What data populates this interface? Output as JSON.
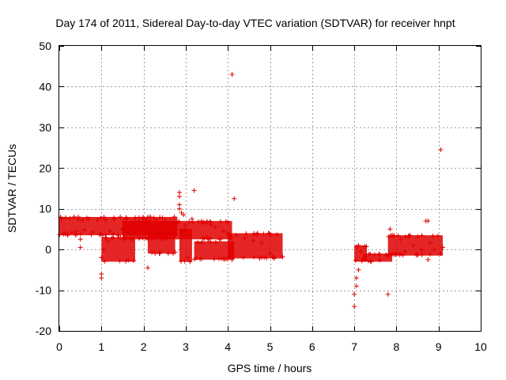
{
  "chart_data": {
    "type": "scatter",
    "title": "Day 174 of 2011, Sidereal Day-to-day VTEC variation (SDTVAR) for receiver hnpt",
    "xlabel": "GPS time / hours",
    "ylabel": "SDTVAR / TECUs",
    "xlim": [
      0,
      10
    ],
    "ylim": [
      -20,
      50
    ],
    "xticks": [
      "0",
      "1",
      "2",
      "3",
      "4",
      "5",
      "6",
      "7",
      "8",
      "9",
      "10"
    ],
    "yticks": [
      "-20",
      "-10",
      "0",
      "10",
      "20",
      "30",
      "40",
      "50"
    ],
    "grid": true,
    "marker": "plus",
    "marker_color": "#e00000",
    "series": [
      {
        "name": "SDTVAR",
        "points": [
          [
            0.05,
            7.5
          ],
          [
            0.1,
            4
          ],
          [
            0.15,
            7.8
          ],
          [
            0.2,
            3.5
          ],
          [
            0.25,
            7.6
          ],
          [
            0.3,
            4.2
          ],
          [
            0.35,
            8
          ],
          [
            0.4,
            4.5
          ],
          [
            0.45,
            7.4
          ],
          [
            0.5,
            0.5
          ],
          [
            0.5,
            2.5
          ],
          [
            0.55,
            7.2
          ],
          [
            0.6,
            4.8
          ],
          [
            0.7,
            7.5
          ],
          [
            0.8,
            4.3
          ],
          [
            0.9,
            7.2
          ],
          [
            1.0,
            -7
          ],
          [
            1.0,
            -6
          ],
          [
            1.0,
            -2
          ],
          [
            1.05,
            0
          ],
          [
            1.1,
            7.3
          ],
          [
            1.15,
            2
          ],
          [
            1.2,
            4.5
          ],
          [
            1.3,
            7.5
          ],
          [
            1.4,
            3.5
          ],
          [
            1.5,
            5
          ],
          [
            1.6,
            7.5
          ],
          [
            1.7,
            2.5
          ],
          [
            1.8,
            7.8
          ],
          [
            1.9,
            3
          ],
          [
            2.0,
            7.5
          ],
          [
            2.1,
            -4.5
          ],
          [
            2.1,
            7
          ],
          [
            2.2,
            3
          ],
          [
            2.3,
            7.2
          ],
          [
            2.4,
            5.5
          ],
          [
            2.5,
            3
          ],
          [
            2.6,
            6.5
          ],
          [
            2.7,
            -1
          ],
          [
            2.75,
            5
          ],
          [
            2.85,
            14
          ],
          [
            2.85,
            13
          ],
          [
            2.85,
            11
          ],
          [
            2.85,
            10
          ],
          [
            2.9,
            9
          ],
          [
            2.95,
            8.5
          ],
          [
            3.0,
            6
          ],
          [
            3.05,
            -2
          ],
          [
            3.1,
            -3
          ],
          [
            3.15,
            7.5
          ],
          [
            3.2,
            14.5
          ],
          [
            3.3,
            6.8
          ],
          [
            3.4,
            6.5
          ],
          [
            3.5,
            3
          ],
          [
            3.6,
            6
          ],
          [
            3.7,
            5.5
          ],
          [
            3.8,
            2.5
          ],
          [
            3.9,
            4.5
          ],
          [
            4.0,
            4
          ],
          [
            4.1,
            43
          ],
          [
            4.15,
            12.5
          ],
          [
            4.1,
            -2.5
          ],
          [
            4.2,
            3.5
          ],
          [
            4.4,
            2.8
          ],
          [
            4.6,
            2.2
          ],
          [
            4.8,
            1.5
          ],
          [
            5.0,
            -1
          ],
          [
            5.1,
            -2.2
          ],
          [
            5.3,
            -1.8
          ],
          [
            7.0,
            -14
          ],
          [
            7.0,
            -11
          ],
          [
            7.05,
            -9
          ],
          [
            7.05,
            -7
          ],
          [
            7.1,
            -5
          ],
          [
            7.1,
            1
          ],
          [
            7.15,
            -0.5
          ],
          [
            7.2,
            -2.5
          ],
          [
            7.4,
            -3
          ],
          [
            7.6,
            -2.5
          ],
          [
            7.8,
            -11
          ],
          [
            7.8,
            -1.5
          ],
          [
            7.85,
            5
          ],
          [
            7.9,
            3.5
          ],
          [
            8.0,
            -1
          ],
          [
            8.1,
            2.5
          ],
          [
            8.2,
            -0.5
          ],
          [
            8.4,
            1
          ],
          [
            8.6,
            0
          ],
          [
            8.7,
            7
          ],
          [
            8.75,
            7
          ],
          [
            8.75,
            -2.5
          ],
          [
            8.8,
            1.5
          ],
          [
            8.9,
            0
          ],
          [
            9.05,
            -1
          ],
          [
            9.05,
            24.5
          ],
          [
            9.1,
            0.5
          ]
        ],
        "bands": [
          {
            "x": [
              0.0,
              2.8
            ],
            "y_low": 3.5,
            "y_high": 8.0
          },
          {
            "x": [
              1.5,
              3.0
            ],
            "y_low": 2.5,
            "y_high": 7.0
          },
          {
            "x": [
              1.0,
              1.8
            ],
            "y_low": -3.0,
            "y_high": 3.0
          },
          {
            "x": [
              2.1,
              2.75
            ],
            "y_low": -1.0,
            "y_high": 4.5
          },
          {
            "x": [
              2.85,
              3.15
            ],
            "y_low": -3.0,
            "y_high": 5.0
          },
          {
            "x": [
              3.0,
              4.1
            ],
            "y_low": 2.5,
            "y_high": 7.0
          },
          {
            "x": [
              3.2,
              4.15
            ],
            "y_low": -2.5,
            "y_high": 2.0
          },
          {
            "x": [
              4.0,
              5.3
            ],
            "y_low": -2.2,
            "y_high": 4.0
          },
          {
            "x": [
              7.0,
              7.3
            ],
            "y_low": -3.0,
            "y_high": 1.0
          },
          {
            "x": [
              7.2,
              7.9
            ],
            "y_low": -3.0,
            "y_high": -1.0
          },
          {
            "x": [
              7.8,
              9.1
            ],
            "y_low": -1.5,
            "y_high": 3.5
          }
        ]
      }
    ]
  }
}
